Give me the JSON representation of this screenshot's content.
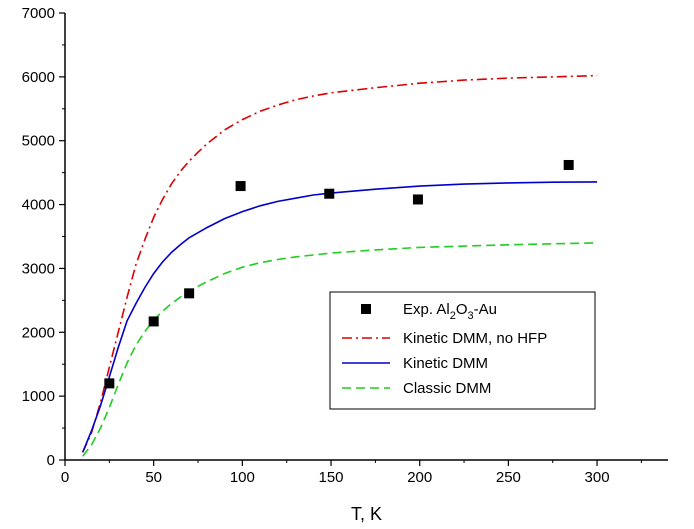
{
  "chart_data": {
    "type": "line",
    "title": "",
    "xlabel": "T, K",
    "ylabel": "",
    "xlim": [
      0,
      340
    ],
    "ylim": [
      0,
      7000
    ],
    "x_ticks": [
      0,
      50,
      100,
      150,
      200,
      250,
      300
    ],
    "y_ticks": [
      0,
      1000,
      2000,
      3000,
      4000,
      5000,
      6000,
      7000
    ],
    "grid": false,
    "legend_position": "center-right",
    "scatter": {
      "name": "Exp. Al2O3-Au",
      "legend": {
        "prefix": "Exp. Al",
        "sub1": "2",
        "mid": "O",
        "sub2": "3",
        "suffix": "-Au"
      },
      "color": "#000000",
      "marker": "square",
      "x": [
        25,
        50,
        70,
        99,
        149,
        199,
        284
      ],
      "y": [
        1200,
        2170,
        2610,
        4290,
        4170,
        4080,
        4620
      ]
    },
    "series": [
      {
        "name": "Kinetic DMM, no HFP",
        "color": "#dd0000",
        "dash": "dash-dot",
        "x": [
          10,
          15,
          20,
          25,
          30,
          35,
          40,
          45,
          50,
          55,
          60,
          65,
          70,
          75,
          80,
          90,
          100,
          110,
          120,
          130,
          140,
          150,
          175,
          200,
          225,
          250,
          275,
          300
        ],
        "y": [
          120,
          430,
          900,
          1450,
          2000,
          2550,
          3060,
          3450,
          3800,
          4080,
          4320,
          4520,
          4680,
          4820,
          4950,
          5170,
          5330,
          5460,
          5560,
          5640,
          5700,
          5750,
          5830,
          5900,
          5950,
          5980,
          6000,
          6020
        ]
      },
      {
        "name": "Kinetic DMM",
        "color": "#0000cc",
        "dash": "solid",
        "x": [
          10,
          15,
          20,
          25,
          30,
          35,
          40,
          45,
          50,
          55,
          60,
          65,
          70,
          75,
          80,
          90,
          100,
          110,
          120,
          130,
          140,
          150,
          175,
          200,
          225,
          250,
          275,
          300
        ],
        "y": [
          120,
          460,
          850,
          1300,
          1760,
          2180,
          2450,
          2700,
          2920,
          3100,
          3250,
          3370,
          3480,
          3560,
          3640,
          3780,
          3890,
          3980,
          4050,
          4100,
          4150,
          4180,
          4240,
          4290,
          4320,
          4340,
          4350,
          4355
        ]
      },
      {
        "name": "Classic DMM",
        "color": "#22cc22",
        "dash": "dashed",
        "x": [
          10,
          15,
          20,
          25,
          30,
          35,
          40,
          45,
          50,
          55,
          60,
          65,
          70,
          75,
          80,
          90,
          100,
          110,
          120,
          130,
          140,
          150,
          175,
          200,
          225,
          250,
          275,
          300
        ],
        "y": [
          60,
          240,
          500,
          820,
          1180,
          1520,
          1800,
          2010,
          2190,
          2330,
          2450,
          2550,
          2640,
          2720,
          2790,
          2920,
          3020,
          3090,
          3140,
          3180,
          3210,
          3240,
          3290,
          3330,
          3350,
          3370,
          3385,
          3400
        ]
      }
    ]
  }
}
